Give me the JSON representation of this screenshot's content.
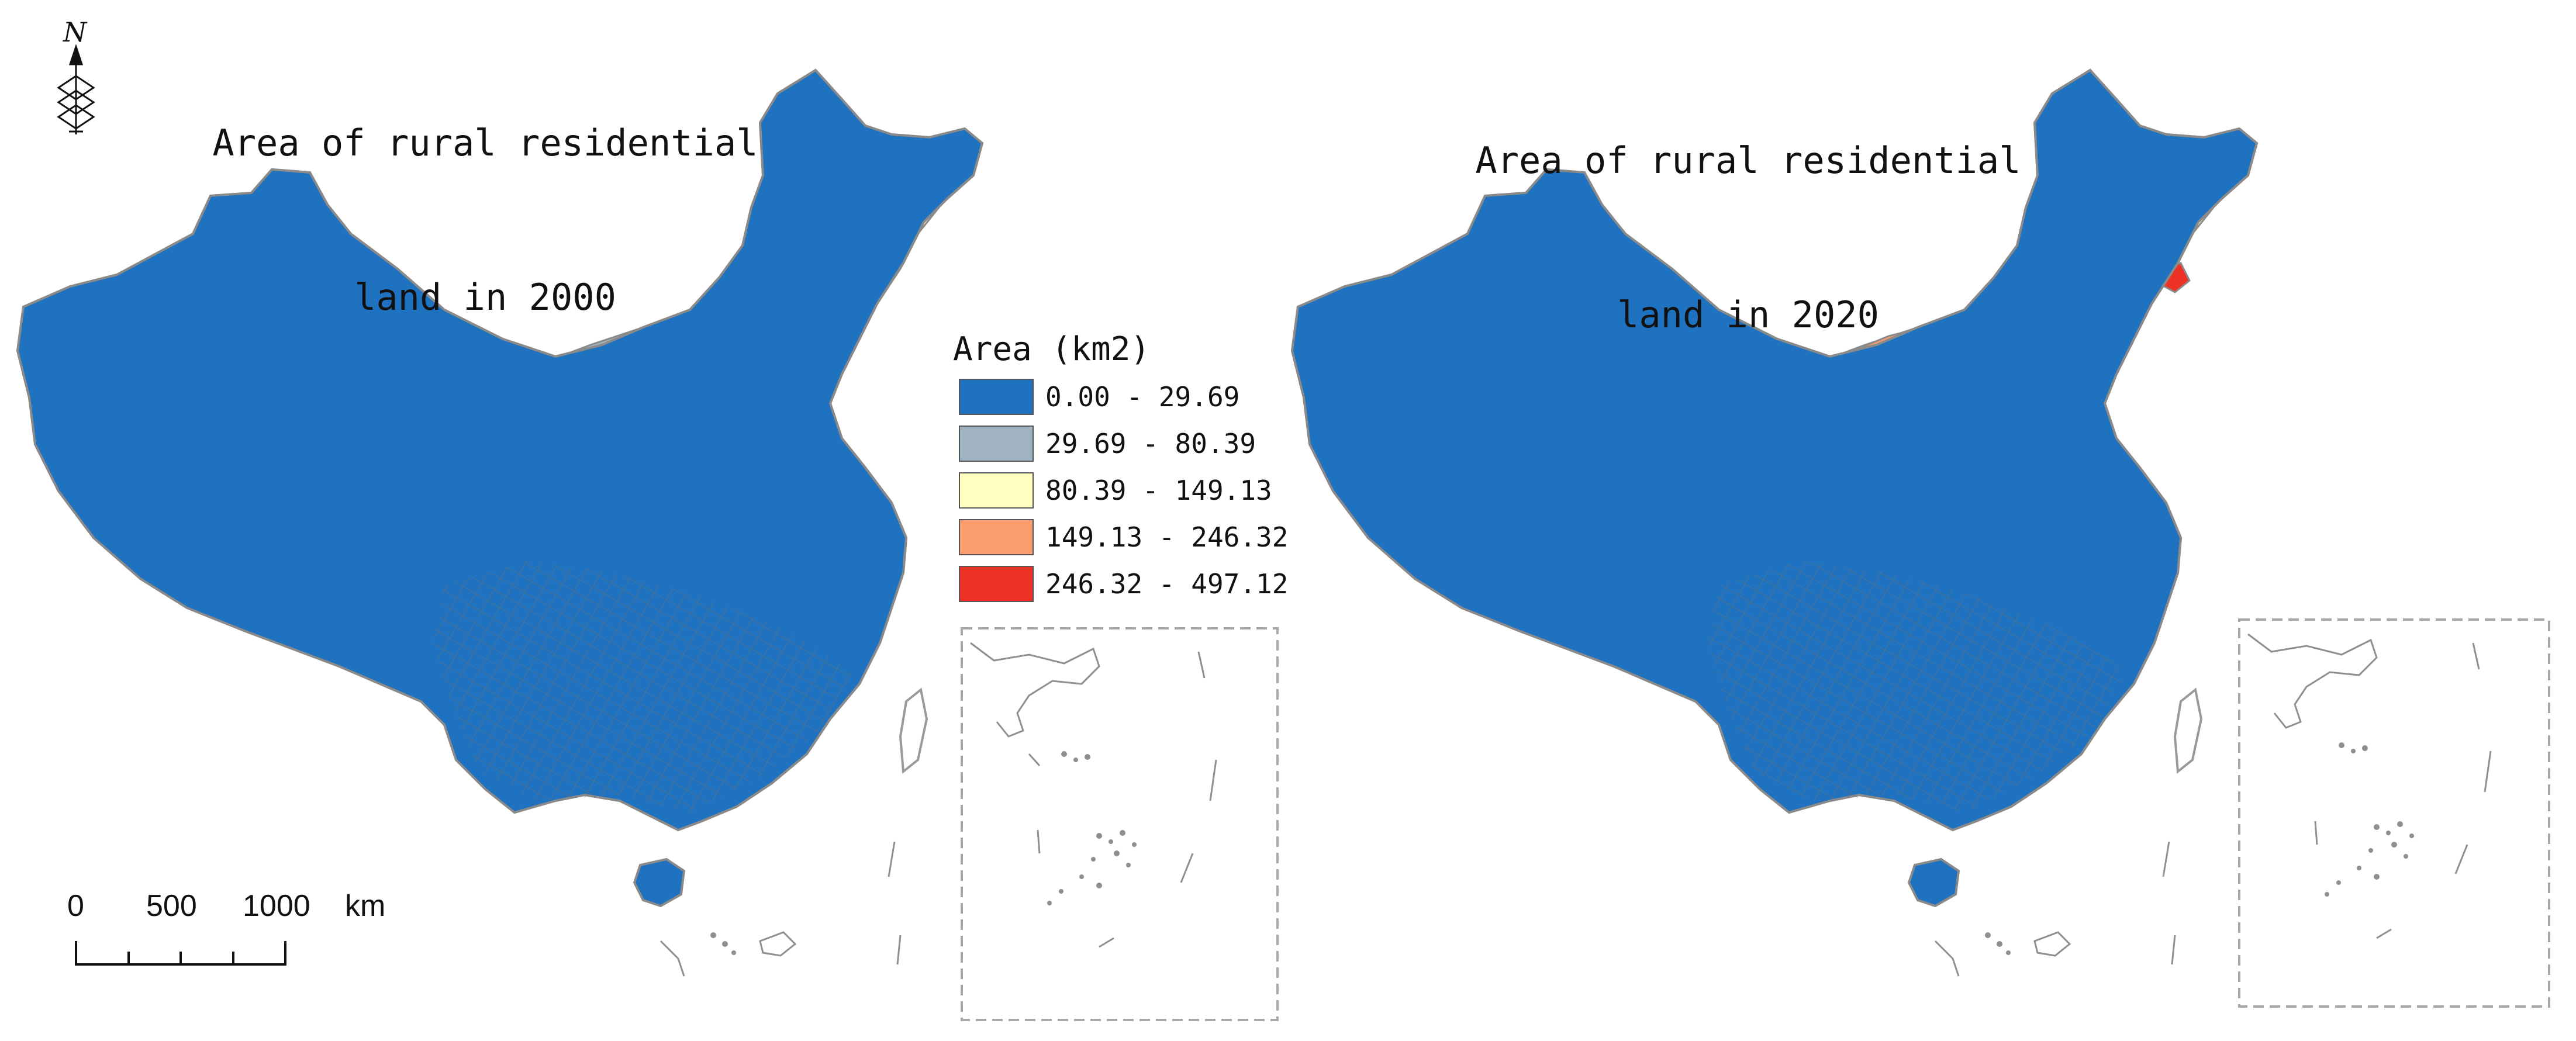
{
  "maps": [
    {
      "title_line1": "Area of rural residential",
      "title_line2": "land in 2000"
    },
    {
      "title_line1": "Area of rural residential",
      "title_line2": "land in 2020"
    }
  ],
  "north_arrow": {
    "label": "N",
    "icon": "north-arrow-icon"
  },
  "legend": {
    "title": "Area (km2)",
    "classes": [
      {
        "label": "0.00 - 29.69",
        "color": "#1f72c0"
      },
      {
        "label": "29.69 - 80.39",
        "color": "#9fb3c0"
      },
      {
        "label": "80.39 - 149.13",
        "color": "#ffffc0"
      },
      {
        "label": "149.13 - 246.32",
        "color": "#fa9c6d"
      },
      {
        "label": "246.32 - 497.12",
        "color": "#ee3125"
      }
    ]
  },
  "scale_bar": {
    "ticks": [
      "0",
      "500",
      "1000"
    ],
    "unit": "km"
  },
  "colors": {
    "boundary": "#8a8a8a",
    "inset_border": "#a8a8a8"
  }
}
